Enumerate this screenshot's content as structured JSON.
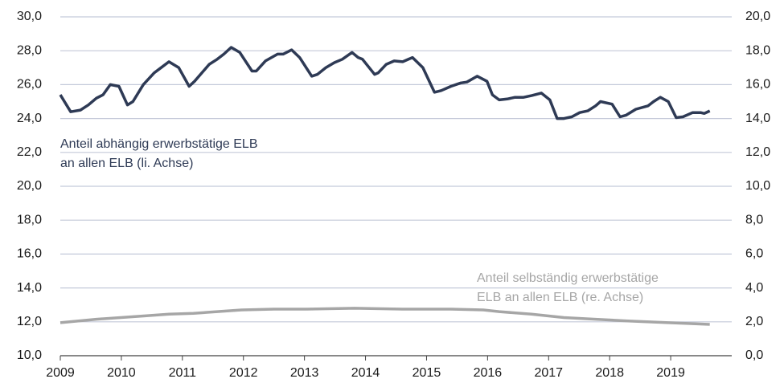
{
  "chart_data": {
    "type": "line",
    "xlim": [
      2009,
      2020
    ],
    "xticks": [
      2009,
      2010,
      2011,
      2012,
      2013,
      2014,
      2015,
      2016,
      2017,
      2018,
      2019
    ],
    "ylim": [
      10,
      30
    ],
    "yticks": [
      {
        "value": 10,
        "label": "10,0"
      },
      {
        "value": 12,
        "label": "12,0"
      },
      {
        "value": 14,
        "label": "14,0"
      },
      {
        "value": 16,
        "label": "16,0"
      },
      {
        "value": 18,
        "label": "18,0"
      },
      {
        "value": 20,
        "label": "20,0"
      },
      {
        "value": 22,
        "label": "22,0"
      },
      {
        "value": 24,
        "label": "24,0"
      },
      {
        "value": 26,
        "label": "26,0"
      },
      {
        "value": 28,
        "label": "28,0"
      },
      {
        "value": 30,
        "label": "30,0"
      }
    ],
    "y2lim": [
      0,
      20
    ],
    "y2ticks": [
      {
        "value": 0,
        "label": "0,0"
      },
      {
        "value": 2,
        "label": "2,0"
      },
      {
        "value": 4,
        "label": "4,0"
      },
      {
        "value": 6,
        "label": "6,0"
      },
      {
        "value": 8,
        "label": "8,0"
      },
      {
        "value": 10,
        "label": "10,0"
      },
      {
        "value": 12,
        "label": "12,0"
      },
      {
        "value": 14,
        "label": "14,0"
      },
      {
        "value": 16,
        "label": "16,0"
      },
      {
        "value": 18,
        "label": "18,0"
      },
      {
        "value": 20,
        "label": "20,0"
      }
    ],
    "grid": true,
    "annotations": [
      [
        "Anteil abhängig erwerbstätige ELB",
        "an allen ELB (li. Achse)"
      ],
      [
        "Anteil selbständig erwerbstätige",
        "ELB an allen ELB (re. Achse)"
      ]
    ],
    "series": [
      {
        "color": "#2e3a55",
        "axis": "y",
        "x": [
          2009.0,
          2009.17,
          2009.33,
          2009.46,
          2009.59,
          2009.7,
          2009.82,
          2009.96,
          2010.1,
          2010.19,
          2010.36,
          2010.54,
          2010.65,
          2010.78,
          2010.94,
          2011.11,
          2011.2,
          2011.44,
          2011.57,
          2011.68,
          2011.8,
          2011.94,
          2012.14,
          2012.21,
          2012.36,
          2012.56,
          2012.65,
          2012.79,
          2012.92,
          2013.12,
          2013.21,
          2013.35,
          2013.49,
          2013.62,
          2013.78,
          2013.88,
          2013.95,
          2014.15,
          2014.21,
          2014.34,
          2014.47,
          2014.61,
          2014.77,
          2014.94,
          2015.13,
          2015.24,
          2015.4,
          2015.56,
          2015.66,
          2015.83,
          2015.99,
          2016.08,
          2016.19,
          2016.32,
          2016.45,
          2016.59,
          2016.72,
          2016.88,
          2017.02,
          2017.14,
          2017.25,
          2017.38,
          2017.51,
          2017.64,
          2017.77,
          2017.85,
          2018.04,
          2018.17,
          2018.27,
          2018.43,
          2018.63,
          2018.72,
          2018.83,
          2018.96,
          2019.09,
          2019.2,
          2019.36,
          2019.49,
          2019.55,
          2019.64
        ],
        "values": [
          25.4,
          24.4,
          24.5,
          24.8,
          25.2,
          25.4,
          26.0,
          25.9,
          24.8,
          25.0,
          26.0,
          26.7,
          27.0,
          27.35,
          27.0,
          25.9,
          26.2,
          27.2,
          27.5,
          27.8,
          28.2,
          27.9,
          26.8,
          26.8,
          27.4,
          27.8,
          27.8,
          28.05,
          27.6,
          26.5,
          26.6,
          27.0,
          27.3,
          27.5,
          27.9,
          27.6,
          27.5,
          26.6,
          26.7,
          27.2,
          27.4,
          27.35,
          27.6,
          27.0,
          25.55,
          25.65,
          25.9,
          26.1,
          26.15,
          26.5,
          26.2,
          25.4,
          25.1,
          25.15,
          25.25,
          25.25,
          25.35,
          25.5,
          25.1,
          24.0,
          24.0,
          24.1,
          24.35,
          24.45,
          24.75,
          25.0,
          24.85,
          24.1,
          24.2,
          24.55,
          24.75,
          25.0,
          25.25,
          25.0,
          24.05,
          24.1,
          24.35,
          24.35,
          24.3,
          24.45
        ]
      },
      {
        "color": "#a6a6a6",
        "axis": "y2",
        "x": [
          2009.0,
          2009.59,
          2009.99,
          2010.39,
          2010.78,
          2011.18,
          2011.57,
          2011.97,
          2012.5,
          2013.02,
          2013.82,
          2014.61,
          2015.4,
          2015.93,
          2016.19,
          2016.72,
          2017.25,
          2017.77,
          2018.3,
          2018.96,
          2019.64
        ],
        "values": [
          1.95,
          2.15,
          2.25,
          2.35,
          2.45,
          2.5,
          2.6,
          2.7,
          2.75,
          2.75,
          2.8,
          2.75,
          2.75,
          2.7,
          2.6,
          2.45,
          2.25,
          2.15,
          2.05,
          1.95,
          1.85
        ]
      }
    ]
  }
}
